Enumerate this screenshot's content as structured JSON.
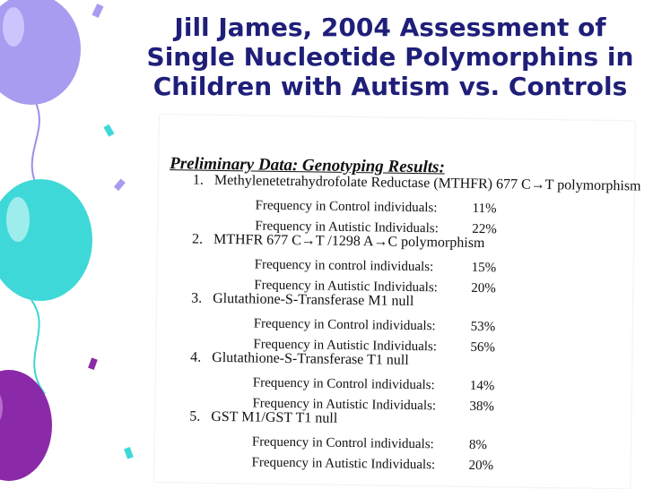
{
  "title": {
    "lines": [
      "Jill James, 2004 Assessment of",
      "Single Nucleotide Polymorphins in",
      "Children with Autism vs. Controls"
    ]
  },
  "document": {
    "heading": "Preliminary Data: Genotyping Results:",
    "items": [
      {
        "number": "1.",
        "name": "Methylenetetrahydrofolate Reductase (MTHFR) 677 C→T polymorphism",
        "rows": [
          {
            "label": "Frequency in Control individuals:",
            "value": "11%"
          },
          {
            "label": "Frequency in Autistic Individuals:",
            "value": "22%"
          }
        ]
      },
      {
        "number": "2.",
        "name": "MTHFR 677 C→T /1298 A→C polymorphism",
        "rows": [
          {
            "label": "Frequency in control individuals:",
            "value": "15%"
          },
          {
            "label": "Frequency in Autistic Individuals:",
            "value": "20%"
          }
        ]
      },
      {
        "number": "3.",
        "name": "Glutathione-S-Transferase M1 null",
        "rows": [
          {
            "label": "Frequency in Control individuals:",
            "value": "53%"
          },
          {
            "label": "Frequency in Autistic Individuals:",
            "value": "56%"
          }
        ]
      },
      {
        "number": "4.",
        "name": "Glutathione-S-Transferase T1 null",
        "rows": [
          {
            "label": "Frequency in Control individuals:",
            "value": "14%"
          },
          {
            "label": "Frequency in Autistic Individuals:",
            "value": "38%"
          }
        ]
      },
      {
        "number": "5.",
        "name": "GST M1/GST T1 null",
        "rows": [
          {
            "label": "Frequency in Control individuals:",
            "value": "8%"
          },
          {
            "label": "Frequency in Autistic Individuals:",
            "value": "20%"
          }
        ]
      }
    ]
  }
}
